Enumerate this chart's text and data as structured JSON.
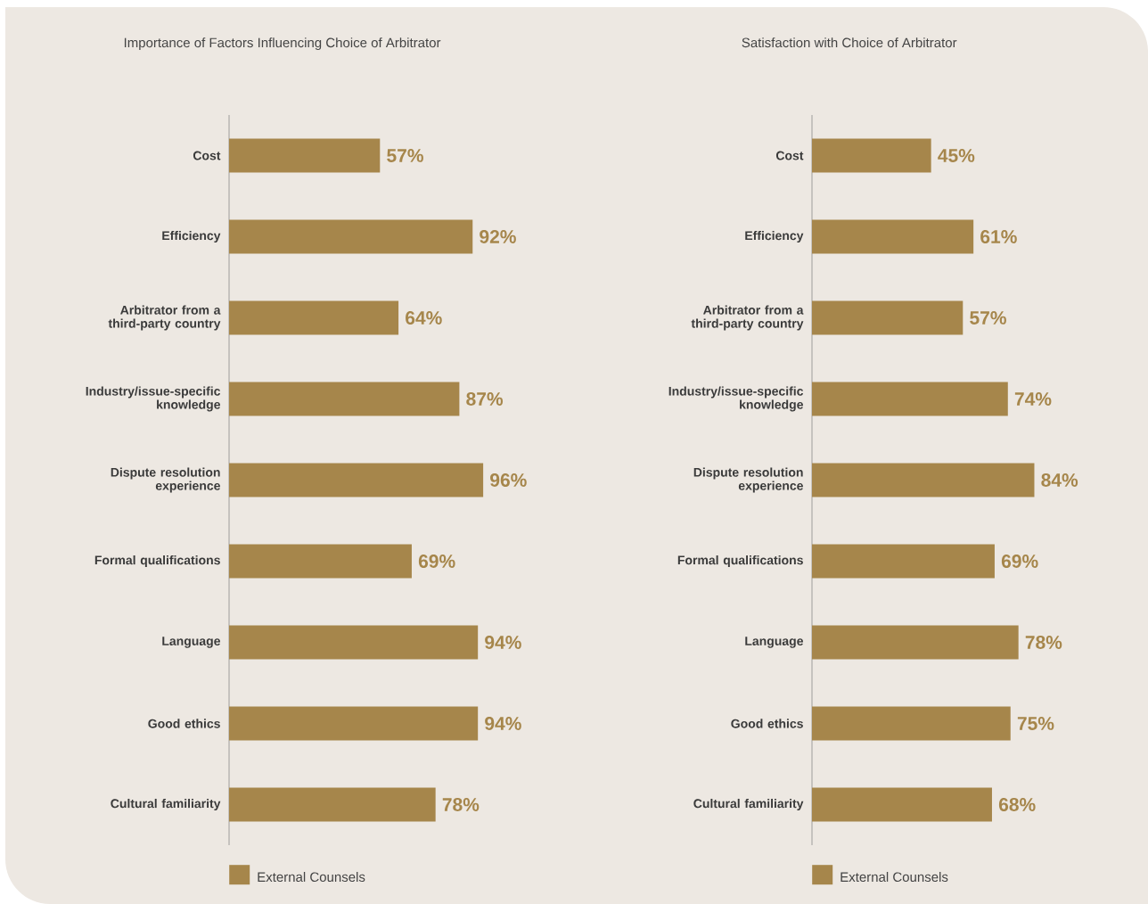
{
  "chart_data": [
    {
      "type": "bar",
      "orientation": "horizontal",
      "title": "Importance of Factors Influencing Choice of Arbitrator",
      "categories": [
        "Cost",
        "Efficiency",
        "Arbitrator from a third-party country",
        "Industry/issue-specific knowledge",
        "Dispute resolution experience",
        "Formal qualifications",
        "Language",
        "Good ethics",
        "Cultural familiarity"
      ],
      "series": [
        {
          "name": "External Counsels",
          "color": "#a6864b",
          "values": [
            57,
            92,
            64,
            87,
            96,
            69,
            94,
            94,
            78
          ],
          "value_labels": [
            "57%",
            "92%",
            "64%",
            "87%",
            "96%",
            "69%",
            "94%",
            "94%",
            "78%"
          ]
        }
      ],
      "tick_labels": "y",
      "legend": "bottom"
    },
    {
      "type": "bar",
      "orientation": "horizontal",
      "title": "Satisfaction with Choice of Arbitrator",
      "categories": [
        "Cost",
        "Efficiency",
        "Arbitrator from a third-party country",
        "Industry/issue-specific knowledge",
        "Dispute resolution experience",
        "Formal qualifications",
        "Language",
        "Good ethics",
        "Cultural familiarity"
      ],
      "series": [
        {
          "name": "External Counsels",
          "color": "#a6864b",
          "values": [
            45,
            61,
            57,
            74,
            84,
            69,
            78,
            75,
            68
          ],
          "value_labels": [
            "45%",
            "61%",
            "57%",
            "74%",
            "84%",
            "69%",
            "78%",
            "75%",
            "68%"
          ]
        }
      ],
      "tick_labels": "y",
      "legend": "bottom"
    }
  ]
}
